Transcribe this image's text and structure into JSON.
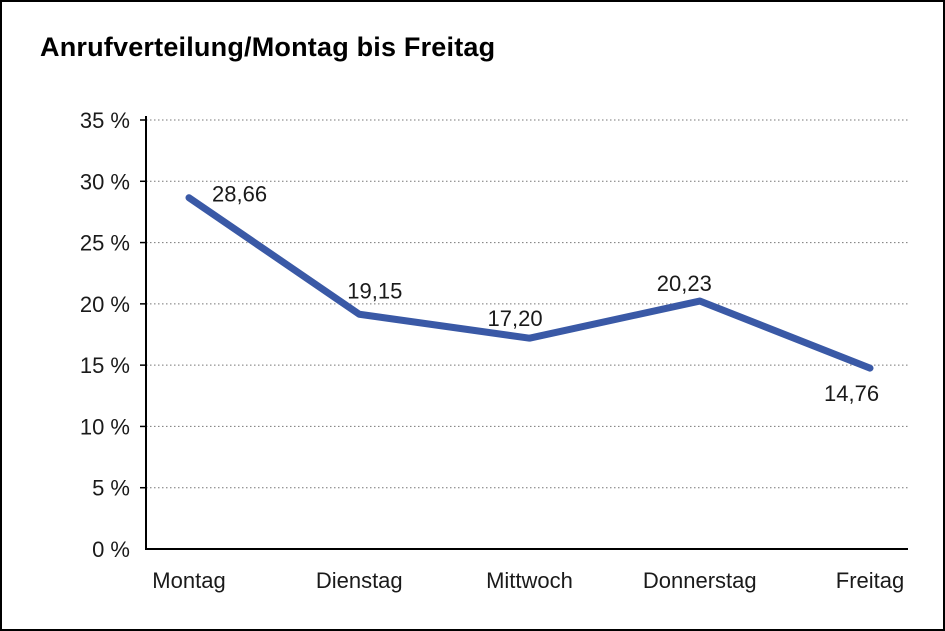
{
  "page": {
    "background": "#ffffff",
    "frame_color": "#000000"
  },
  "chart_data": {
    "type": "line",
    "title": "Anrufverteilung/Montag bis Freitag",
    "categories": [
      "Montag",
      "Dienstag",
      "Mittwoch",
      "Donnerstag",
      "Freitag"
    ],
    "values": [
      28.66,
      19.15,
      17.2,
      20.23,
      14.76
    ],
    "value_labels": [
      "28,66",
      "19,15",
      "17,20",
      "20,23",
      "14,76"
    ],
    "xlabel": "",
    "ylabel": "",
    "ylim": [
      0,
      35
    ],
    "ytick_step": 5,
    "ytick_labels": [
      "0 %",
      "5 %",
      "10 %",
      "15 %",
      "20 %",
      "25 %",
      "30 %",
      "35 %"
    ],
    "grid": "horizontal-dotted",
    "legend": "none",
    "line_color": "#3A59A6",
    "axis_color": "#000000",
    "grid_color": "#777777",
    "text_color": "#1a1a1a"
  }
}
